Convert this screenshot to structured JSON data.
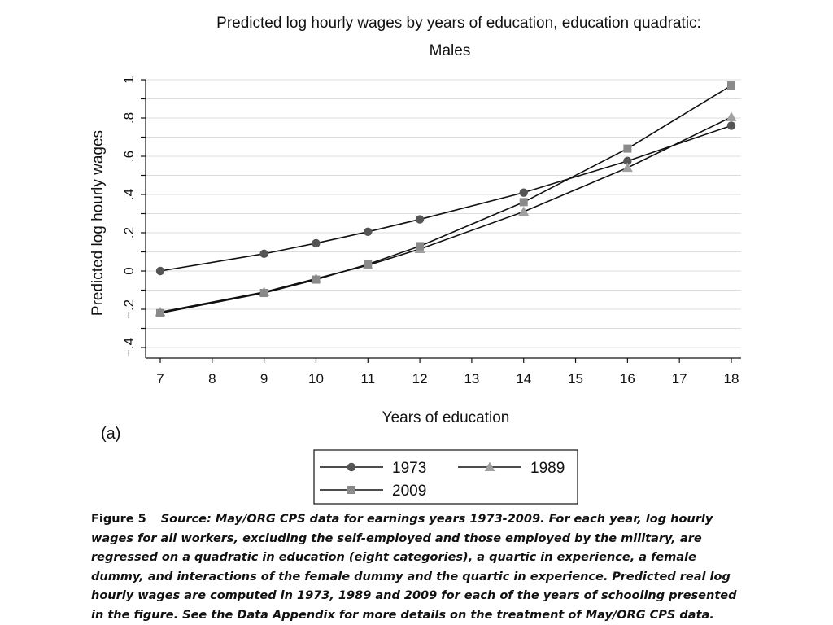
{
  "chart_data": {
    "type": "line",
    "title": "Predicted log hourly wages by years of education, education quadratic:",
    "subtitle": "Males",
    "xlabel": "Years of education",
    "ylabel": "Predicted log hourly wages",
    "xlim": [
      7,
      18
    ],
    "ylim": [
      -0.4,
      1.0
    ],
    "x_ticks": [
      7,
      8,
      9,
      10,
      11,
      12,
      13,
      14,
      15,
      16,
      17,
      18
    ],
    "y_ticks": [
      -0.4,
      -0.2,
      0,
      0.2,
      0.4,
      0.6,
      0.8,
      1
    ],
    "y_tick_labels": [
      "−.4",
      "−.2",
      "0",
      ".2",
      ".4",
      ".6",
      ".8",
      "1"
    ],
    "grid": true,
    "legend_position": "bottom",
    "series": [
      {
        "name": "1973",
        "marker": "circle",
        "color": "#555555",
        "x": [
          7,
          9,
          10,
          11,
          12,
          14,
          16,
          18
        ],
        "y": [
          0.0,
          0.09,
          0.145,
          0.205,
          0.27,
          0.41,
          0.575,
          0.76
        ]
      },
      {
        "name": "1989",
        "marker": "triangle",
        "color": "#a0a0a0",
        "x": [
          7,
          9,
          10,
          11,
          12,
          14,
          16,
          18
        ],
        "y": [
          -0.215,
          -0.11,
          -0.04,
          0.03,
          0.115,
          0.31,
          0.54,
          0.805
        ]
      },
      {
        "name": "2009",
        "marker": "square",
        "color": "#8a8a8a",
        "x": [
          7,
          9,
          10,
          11,
          12,
          14,
          16,
          18
        ],
        "y": [
          -0.22,
          -0.115,
          -0.045,
          0.035,
          0.13,
          0.36,
          0.64,
          0.97
        ]
      }
    ]
  },
  "panel_label": "(a)",
  "caption": {
    "label": "Figure 5",
    "text": "Source: May/ORG CPS data for earnings years 1973-2009. For each year, log hourly wages for all workers, excluding the self-employed and those employed by the military, are regressed on a quadratic in education (eight categories), a quartic in experience, a female dummy, and interactions of the female dummy and the quartic in experience. Predicted real log hourly wages are computed in 1973, 1989 and 2009 for each of the years of schooling presented in the figure. See the Data Appendix for more details on the treatment of May/ORG CPS data."
  }
}
